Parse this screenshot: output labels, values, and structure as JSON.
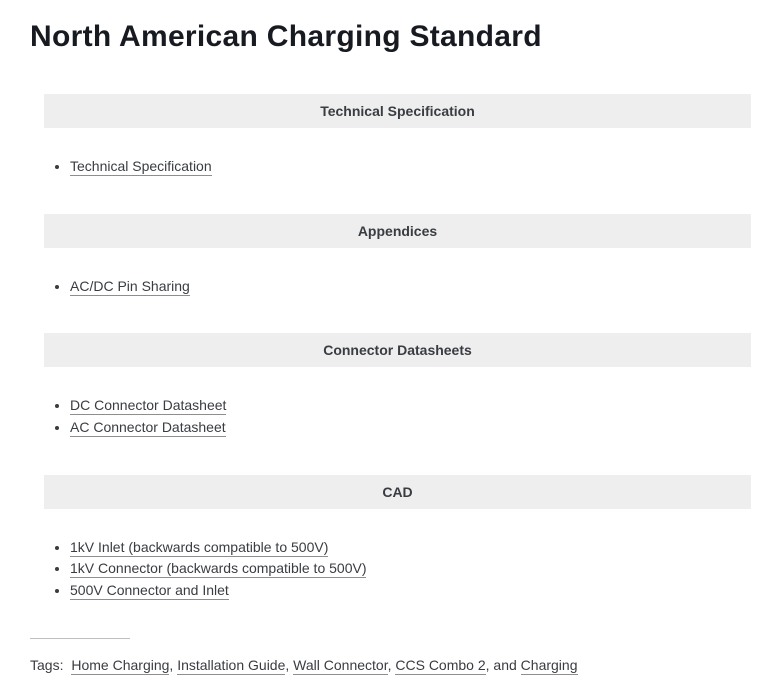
{
  "title": "North American Charging Standard",
  "sections": [
    {
      "heading": "Technical Specification",
      "items": [
        "Technical Specification"
      ]
    },
    {
      "heading": "Appendices",
      "items": [
        "AC/DC Pin Sharing"
      ]
    },
    {
      "heading": "Connector Datasheets",
      "items": [
        "DC Connector Datasheet",
        "AC Connector Datasheet"
      ]
    },
    {
      "heading": "CAD",
      "items": [
        "1kV Inlet (backwards compatible to 500V)",
        "1kV Connector (backwards compatible to 500V)",
        "500V Connector and Inlet"
      ]
    }
  ],
  "tags": {
    "label": "Tags:",
    "items": [
      "Home Charging",
      "Installation Guide",
      "Wall Connector",
      "CCS Combo 2",
      "Charging"
    ],
    "joiner": ", ",
    "last_joiner": ", and "
  }
}
